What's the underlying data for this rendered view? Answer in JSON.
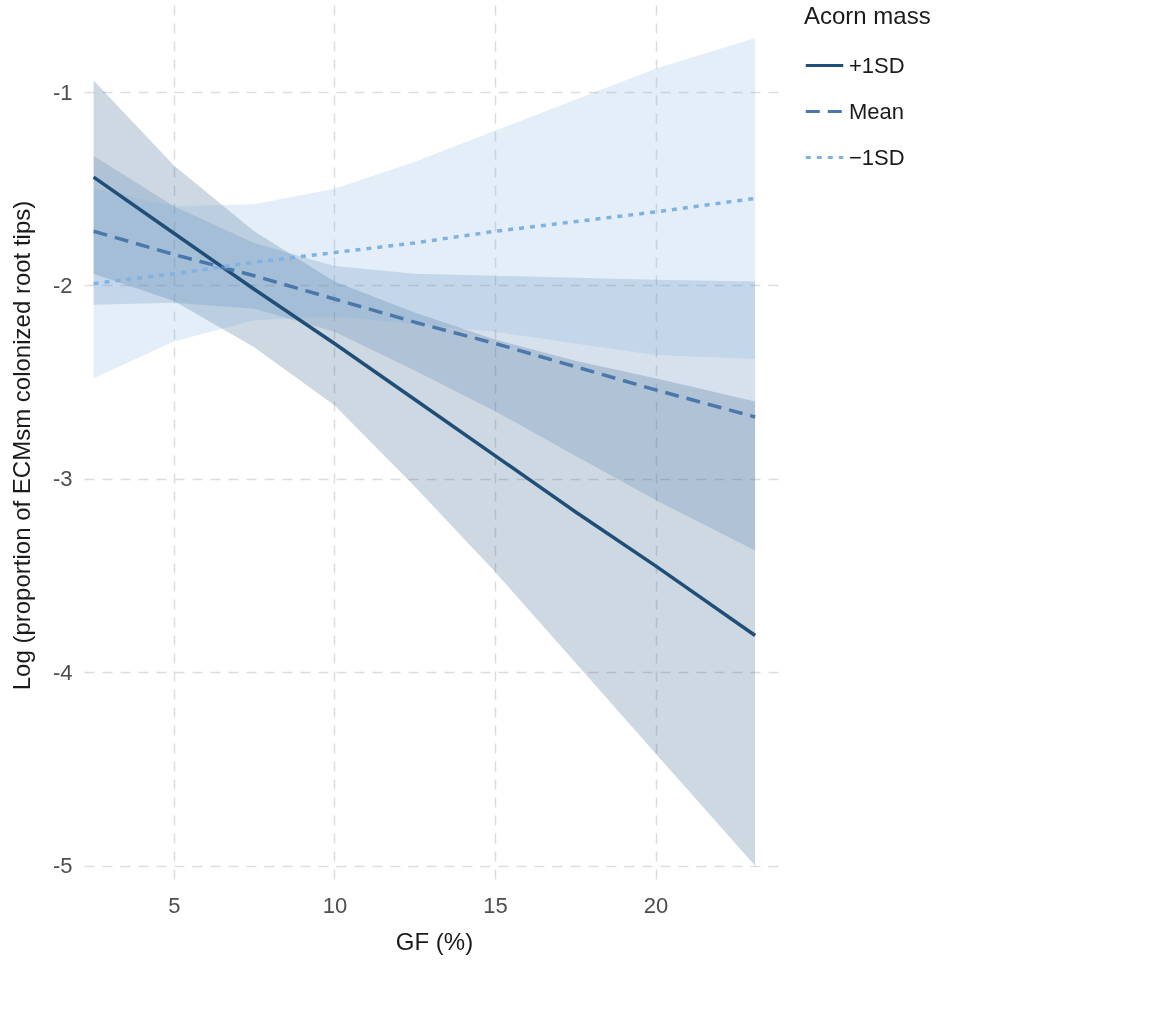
{
  "chart_data": {
    "type": "line",
    "xlabel": "GF (%)",
    "ylabel": "Log (proportion of ECMsm colonized root tips)",
    "legend_title": "Acorn mass",
    "legend": "right",
    "grid": true,
    "x": [
      2.5,
      5,
      7.5,
      10,
      12.5,
      15,
      17.5,
      20,
      23.1
    ],
    "xlim": [
      2.2,
      24
    ],
    "xticks": [
      5,
      10,
      15,
      20
    ],
    "ylim": [
      -5.1,
      -0.55
    ],
    "yticks": [
      -1,
      -2,
      -3,
      -4,
      -5
    ],
    "series": [
      {
        "name": "+1SD",
        "color": "#1f4e79",
        "line_style": "solid",
        "values": [
          -1.44,
          -1.73,
          -2.02,
          -2.3,
          -2.59,
          -2.88,
          -3.17,
          -3.45,
          -3.81
        ],
        "lower": [
          -1.94,
          -2.08,
          -2.32,
          -2.62,
          -3.04,
          -3.48,
          -3.95,
          -4.42,
          -5.0
        ],
        "upper": [
          -0.94,
          -1.38,
          -1.72,
          -1.98,
          -2.14,
          -2.28,
          -2.39,
          -2.48,
          -2.6
        ]
      },
      {
        "name": "Mean",
        "color": "#4a78ab",
        "line_style": "dashed",
        "values": [
          -1.72,
          -1.84,
          -1.95,
          -2.07,
          -2.19,
          -2.3,
          -2.42,
          -2.54,
          -2.68
        ],
        "lower": [
          -2.1,
          -2.09,
          -2.12,
          -2.24,
          -2.44,
          -2.65,
          -2.88,
          -3.11,
          -3.37
        ],
        "upper": [
          -1.33,
          -1.59,
          -1.78,
          -1.9,
          -1.94,
          -1.95,
          -1.96,
          -1.97,
          -1.98
        ]
      },
      {
        "name": "−1SD",
        "color": "#7fb2e0",
        "line_style": "dotted",
        "values": [
          -1.99,
          -1.94,
          -1.88,
          -1.83,
          -1.78,
          -1.72,
          -1.67,
          -1.62,
          -1.55
        ],
        "lower": [
          -2.48,
          -2.29,
          -2.18,
          -2.16,
          -2.2,
          -2.24,
          -2.3,
          -2.36,
          -2.38
        ],
        "upper": [
          -1.5,
          -1.59,
          -1.58,
          -1.5,
          -1.36,
          -1.2,
          -1.04,
          -0.88,
          -0.72
        ]
      }
    ]
  }
}
